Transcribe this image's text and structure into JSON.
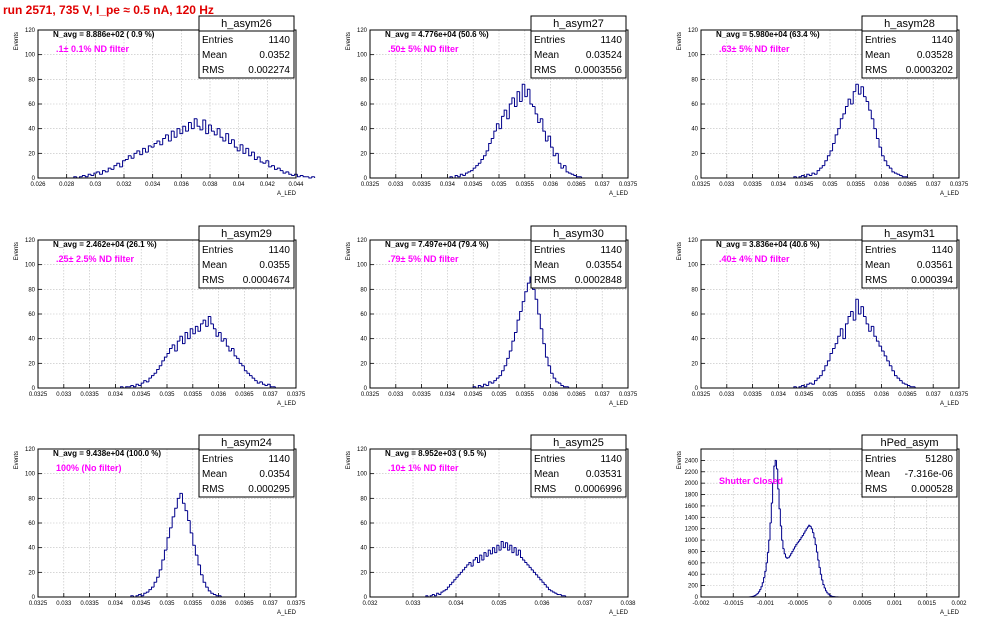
{
  "run_title": "run 2571,   735 V, I_pe ≈ 0.5 nA, 120 Hz",
  "colors": {
    "histogram": "#00008b",
    "filter_text": "#ff00ff",
    "run_title": "#e00000",
    "grid": "#bdbdbd"
  },
  "chart_data": [
    {
      "type": "histogram",
      "name": "h_asym26",
      "ylabel": "Events",
      "xlabel": "A_LED",
      "xlim": [
        0.026,
        0.044
      ],
      "ylim": [
        0,
        120
      ],
      "xticks": [
        "0.026",
        "0.028",
        "0.03",
        "0.032",
        "0.034",
        "0.036",
        "0.038",
        "0.04",
        "0.042",
        "0.044"
      ],
      "yticks": [
        "0",
        "20",
        "40",
        "60",
        "80",
        "100",
        "120"
      ],
      "navg": "N_avg = 8.886e+02 ( 0.9 %)",
      "filter": ".1± 0.1% ND filter",
      "stats": {
        "Entries": "1140",
        "Mean": "0.0352",
        "RMS": "0.002274"
      },
      "bins": {
        "low": 0.0285,
        "width": 0.0002,
        "values": [
          1,
          0,
          1,
          2,
          1,
          3,
          2,
          4,
          5,
          3,
          6,
          5,
          8,
          7,
          10,
          12,
          9,
          14,
          15,
          18,
          16,
          20,
          22,
          19,
          24,
          21,
          26,
          25,
          28,
          30,
          27,
          32,
          35,
          30,
          38,
          33,
          40,
          36,
          42,
          38,
          45,
          40,
          48,
          42,
          39,
          47,
          36,
          43,
          38,
          35,
          40,
          33,
          30,
          36,
          28,
          31,
          25,
          22,
          27,
          20,
          24,
          18,
          21,
          15,
          17,
          13,
          12,
          14,
          9,
          10,
          7,
          8,
          6,
          4,
          5,
          3,
          2,
          3,
          1,
          2,
          1,
          1,
          0,
          1
        ]
      }
    },
    {
      "type": "histogram",
      "name": "h_asym27",
      "ylabel": "Events",
      "xlabel": "A_LED",
      "xlim": [
        0.0325,
        0.0375
      ],
      "ylim": [
        0,
        120
      ],
      "xticks": [
        "0.0325",
        "0.033",
        "0.0335",
        "0.034",
        "0.0345",
        "0.035",
        "0.0355",
        "0.036",
        "0.0365",
        "0.037",
        "0.0375"
      ],
      "yticks": [
        "0",
        "20",
        "40",
        "60",
        "80",
        "100",
        "120"
      ],
      "navg": "N_avg = 4.776e+04 (50.6 %)",
      "filter": ".50± 5% ND filter",
      "stats": {
        "Entries": "1140",
        "Mean": "0.03524",
        "RMS": "0.0003556"
      },
      "bins": {
        "low": 0.03405,
        "width": 5e-05,
        "values": [
          1,
          0,
          2,
          1,
          3,
          2,
          4,
          5,
          6,
          8,
          10,
          12,
          15,
          18,
          22,
          28,
          32,
          38,
          44,
          40,
          50,
          55,
          48,
          60,
          65,
          58,
          70,
          62,
          76,
          66,
          72,
          60,
          58,
          52,
          45,
          48,
          38,
          30,
          34,
          25,
          18,
          20,
          12,
          8,
          10,
          5,
          4,
          3,
          2,
          1,
          1
        ]
      }
    },
    {
      "type": "histogram",
      "name": "h_asym28",
      "ylabel": "Events",
      "xlabel": "A_LED",
      "xlim": [
        0.0325,
        0.0375
      ],
      "ylim": [
        0,
        120
      ],
      "xticks": [
        "0.0325",
        "0.033",
        "0.0335",
        "0.034",
        "0.0345",
        "0.035",
        "0.0355",
        "0.036",
        "0.0365",
        "0.037",
        "0.0375"
      ],
      "yticks": [
        "0",
        "20",
        "40",
        "60",
        "80",
        "100",
        "120"
      ],
      "navg": "N_avg = 5.980e+04 (63.4 %)",
      "filter": ".63± 5% ND filter",
      "stats": {
        "Entries": "1140",
        "Mean": "0.03528",
        "RMS": "0.0003202"
      },
      "bins": {
        "low": 0.0343,
        "width": 5e-05,
        "values": [
          1,
          0,
          1,
          2,
          1,
          3,
          2,
          4,
          3,
          6,
          8,
          10,
          14,
          18,
          22,
          28,
          35,
          40,
          48,
          52,
          58,
          64,
          60,
          70,
          76,
          68,
          74,
          66,
          62,
          55,
          48,
          40,
          32,
          25,
          18,
          14,
          10,
          8,
          5,
          4,
          3,
          2,
          1,
          1
        ]
      }
    },
    {
      "type": "histogram",
      "name": "h_asym29",
      "ylabel": "Events",
      "xlabel": "A_LED",
      "xlim": [
        0.0325,
        0.0375
      ],
      "ylim": [
        0,
        120
      ],
      "xticks": [
        "0.0325",
        "0.033",
        "0.0335",
        "0.034",
        "0.0345",
        "0.035",
        "0.0355",
        "0.036",
        "0.0365",
        "0.037",
        "0.0375"
      ],
      "yticks": [
        "0",
        "20",
        "40",
        "60",
        "80",
        "100",
        "120"
      ],
      "navg": "N_avg = 2.462e+04 (26.1 %)",
      "filter": ".25± 2.5% ND filter",
      "stats": {
        "Entries": "1140",
        "Mean": "0.0355",
        "RMS": "0.0004674"
      },
      "bins": {
        "low": 0.0341,
        "width": 5e-05,
        "values": [
          1,
          0,
          1,
          1,
          2,
          1,
          3,
          2,
          4,
          6,
          5,
          8,
          10,
          12,
          15,
          18,
          22,
          25,
          28,
          32,
          35,
          30,
          38,
          42,
          36,
          45,
          40,
          48,
          44,
          50,
          46,
          52,
          55,
          50,
          58,
          52,
          48,
          42,
          45,
          38,
          40,
          34,
          30,
          32,
          26,
          24,
          20,
          18,
          14,
          12,
          10,
          8,
          6,
          4,
          5,
          3,
          2,
          3,
          1,
          1
        ]
      }
    },
    {
      "type": "histogram",
      "name": "h_asym30",
      "ylabel": "Events",
      "xlabel": "A_LED",
      "xlim": [
        0.0325,
        0.0375
      ],
      "ylim": [
        0,
        120
      ],
      "xticks": [
        "0.0325",
        "0.033",
        "0.0335",
        "0.034",
        "0.0345",
        "0.035",
        "0.0355",
        "0.036",
        "0.0365",
        "0.037",
        "0.0375"
      ],
      "yticks": [
        "0",
        "20",
        "40",
        "60",
        "80",
        "100",
        "120"
      ],
      "navg": "N_avg = 7.497e+04 (79.4 %)",
      "filter": ".79± 5% ND filter",
      "stats": {
        "Entries": "1140",
        "Mean": "0.03554",
        "RMS": "0.0002848"
      },
      "bins": {
        "low": 0.0345,
        "width": 5e-05,
        "values": [
          1,
          0,
          2,
          1,
          3,
          2,
          5,
          4,
          6,
          8,
          10,
          14,
          18,
          24,
          30,
          38,
          45,
          55,
          62,
          70,
          78,
          85,
          90,
          80,
          72,
          60,
          48,
          36,
          25,
          18,
          12,
          8,
          5,
          4,
          2,
          1,
          1
        ]
      }
    },
    {
      "type": "histogram",
      "name": "h_asym31",
      "ylabel": "Events",
      "xlabel": "A_LED",
      "xlim": [
        0.0325,
        0.0375
      ],
      "ylim": [
        0,
        120
      ],
      "xticks": [
        "0.0325",
        "0.033",
        "0.0335",
        "0.034",
        "0.0345",
        "0.035",
        "0.0355",
        "0.036",
        "0.0365",
        "0.037",
        "0.0375"
      ],
      "yticks": [
        "0",
        "20",
        "40",
        "60",
        "80",
        "100",
        "120"
      ],
      "navg": "N_avg = 3.836e+04 (40.6 %)",
      "filter": ".40± 4% ND filter",
      "stats": {
        "Entries": "1140",
        "Mean": "0.03561",
        "RMS": "0.000394"
      },
      "bins": {
        "low": 0.0343,
        "width": 5e-05,
        "values": [
          1,
          0,
          1,
          2,
          1,
          3,
          4,
          3,
          6,
          8,
          10,
          14,
          18,
          22,
          28,
          32,
          36,
          42,
          48,
          40,
          52,
          58,
          62,
          55,
          72,
          60,
          66,
          58,
          52,
          46,
          50,
          42,
          38,
          34,
          30,
          26,
          22,
          18,
          14,
          10,
          8,
          6,
          4,
          3,
          2,
          1,
          1
        ]
      }
    },
    {
      "type": "histogram",
      "name": "h_asym24",
      "ylabel": "Events",
      "xlabel": "A_LED",
      "xlim": [
        0.0325,
        0.0375
      ],
      "ylim": [
        0,
        120
      ],
      "xticks": [
        "0.0325",
        "0.033",
        "0.0335",
        "0.034",
        "0.0345",
        "0.035",
        "0.0355",
        "0.036",
        "0.0365",
        "0.037",
        "0.0375"
      ],
      "yticks": [
        "0",
        "20",
        "40",
        "60",
        "80",
        "100",
        "120"
      ],
      "navg": "N_avg = 9.438e+04 (100.0 %)",
      "filter": "100% (No filter)",
      "stats": {
        "Entries": "1140",
        "Mean": "0.0354",
        "RMS": "0.000295"
      },
      "bins": {
        "low": 0.0343,
        "width": 5e-05,
        "values": [
          1,
          0,
          1,
          2,
          1,
          3,
          4,
          6,
          8,
          12,
          16,
          22,
          30,
          38,
          48,
          56,
          65,
          72,
          80,
          84,
          76,
          70,
          62,
          52,
          42,
          34,
          26,
          18,
          12,
          8,
          5,
          3,
          2,
          1,
          1
        ]
      }
    },
    {
      "type": "histogram",
      "name": "h_asym25",
      "ylabel": "Events",
      "xlabel": "A_LED",
      "xlim": [
        0.032,
        0.038
      ],
      "ylim": [
        0,
        120
      ],
      "xticks": [
        "0.032",
        "0.033",
        "0.034",
        "0.035",
        "0.036",
        "0.037",
        "0.038"
      ],
      "yticks": [
        "0",
        "20",
        "40",
        "60",
        "80",
        "100",
        "120"
      ],
      "navg": "N_avg = 8.952e+03 ( 9.5 %)",
      "filter": ".10± 1% ND filter",
      "stats": {
        "Entries": "1140",
        "Mean": "0.03531",
        "RMS": "0.0006996"
      },
      "bins": {
        "low": 0.0333,
        "width": 5e-05,
        "values": [
          1,
          0,
          1,
          2,
          1,
          3,
          2,
          4,
          5,
          6,
          8,
          10,
          12,
          14,
          16,
          18,
          20,
          22,
          24,
          26,
          28,
          25,
          30,
          32,
          28,
          34,
          30,
          36,
          33,
          38,
          35,
          40,
          36,
          42,
          38,
          45,
          40,
          44,
          38,
          42,
          36,
          40,
          34,
          38,
          32,
          30,
          28,
          26,
          24,
          22,
          20,
          18,
          16,
          14,
          12,
          10,
          8,
          6,
          5,
          4,
          3,
          2,
          2,
          1,
          1
        ]
      }
    },
    {
      "type": "histogram",
      "name": "hPed_asym",
      "ylabel": "Events",
      "xlabel": "A_LED",
      "xlim": [
        -0.002,
        0.002
      ],
      "ylim": [
        0,
        2600
      ],
      "xticks": [
        "-0.002",
        "-0.0015",
        "-0.001",
        "-0.0005",
        "0",
        "0.0005",
        "0.001",
        "0.0015",
        "0.002"
      ],
      "yticks": [
        "0",
        "200",
        "400",
        "600",
        "800",
        "1000",
        "1200",
        "1400",
        "1600",
        "1800",
        "2000",
        "2200",
        "2400"
      ],
      "navg": "",
      "filter": "Shutter Closed",
      "stats": {
        "Entries": "51280",
        "Mean": "-7.316e-06",
        "RMS": "0.000528"
      },
      "bins": {
        "low": -0.00125,
        "width": 2e-05,
        "values": [
          2,
          4,
          8,
          15,
          25,
          40,
          60,
          90,
          130,
          180,
          250,
          340,
          450,
          600,
          780,
          1000,
          1300,
          1650,
          2000,
          2300,
          2400,
          2250,
          1900,
          1550,
          1250,
          1000,
          850,
          760,
          700,
          680,
          690,
          720,
          760,
          800,
          840,
          880,
          920,
          950,
          980,
          1010,
          1050,
          1080,
          1120,
          1160,
          1200,
          1230,
          1260,
          1240,
          1200,
          1130,
          1040,
          920,
          790,
          650,
          520,
          400,
          300,
          220,
          160,
          110,
          75,
          50,
          32,
          20,
          12,
          8,
          5,
          3,
          2,
          1
        ]
      }
    }
  ]
}
